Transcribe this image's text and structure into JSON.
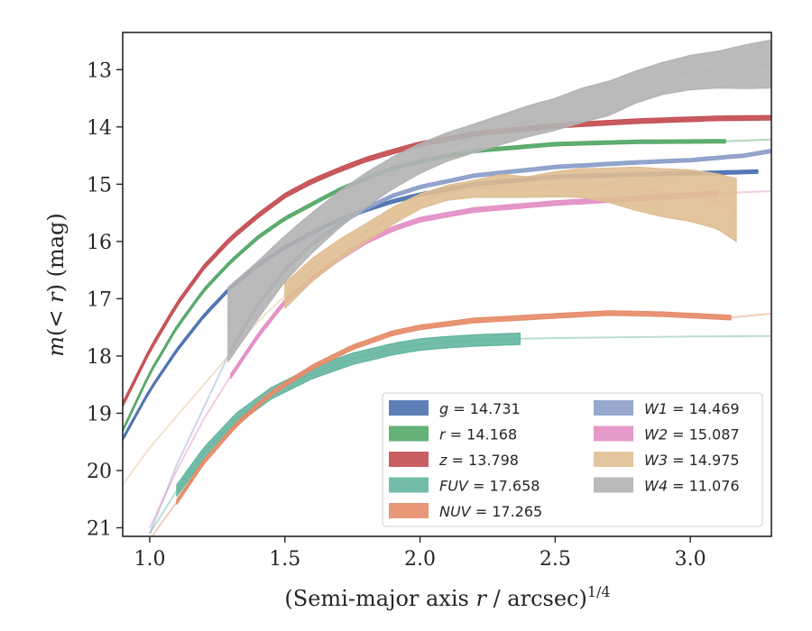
{
  "chart_data": {
    "type": "line",
    "xlabel": "(Semi-major axis r / arcsec)1/4",
    "ylabel": "m(< r) (mag)",
    "xlim": [
      0.9,
      3.3
    ],
    "ylim": [
      21.15,
      12.35
    ],
    "y_inverted": true,
    "x_ticks": [
      "1.0",
      "1.5",
      "2.0",
      "2.5",
      "3.0"
    ],
    "x_tick_values": [
      1.0,
      1.5,
      2.0,
      2.5,
      3.0
    ],
    "y_ticks": [
      "13",
      "14",
      "15",
      "16",
      "17",
      "18",
      "19",
      "20",
      "21"
    ],
    "y_tick_values": [
      13,
      14,
      15,
      16,
      17,
      18,
      19,
      20,
      21
    ],
    "legend_position": "lower-right",
    "legend_columns": 2,
    "grid": false,
    "series": [
      {
        "name": "g",
        "legend_label": "g = 14.731",
        "color": "#4c72b0",
        "x": [
          0.9,
          1.0,
          1.1,
          1.2,
          1.3,
          1.4,
          1.5,
          1.6,
          1.7,
          1.8,
          1.9,
          2.0,
          2.2,
          2.5,
          2.8,
          3.1,
          3.25
        ],
        "y": [
          19.45,
          18.6,
          17.9,
          17.3,
          16.8,
          16.42,
          16.1,
          15.85,
          15.62,
          15.45,
          15.3,
          15.18,
          15.0,
          14.87,
          14.83,
          14.8,
          14.78
        ],
        "band_halfwidth": 0.03,
        "band_x_range": [
          0.9,
          3.25
        ]
      },
      {
        "name": "r",
        "legend_label": "r = 14.168",
        "color": "#55a868",
        "x": [
          0.9,
          1.0,
          1.1,
          1.2,
          1.3,
          1.4,
          1.5,
          1.6,
          1.7,
          1.8,
          1.9,
          2.0,
          2.2,
          2.5,
          2.8,
          3.13,
          3.3
        ],
        "y": [
          19.3,
          18.3,
          17.5,
          16.85,
          16.35,
          15.93,
          15.6,
          15.35,
          15.1,
          14.9,
          14.72,
          14.6,
          14.42,
          14.3,
          14.26,
          14.25,
          14.22
        ],
        "band_halfwidth": 0.03,
        "band_x_range": [
          0.9,
          3.13
        ]
      },
      {
        "name": "z",
        "legend_label": "z = 13.798",
        "color": "#c44e52",
        "x": [
          0.9,
          1.0,
          1.1,
          1.2,
          1.3,
          1.4,
          1.5,
          1.6,
          1.7,
          1.8,
          1.9,
          2.0,
          2.2,
          2.5,
          2.8,
          3.1,
          3.3
        ],
        "y": [
          18.85,
          17.9,
          17.1,
          16.45,
          15.95,
          15.55,
          15.2,
          14.95,
          14.75,
          14.57,
          14.43,
          14.3,
          14.12,
          13.98,
          13.9,
          13.85,
          13.84
        ],
        "band_halfwidth": 0.04,
        "band_x_range": [
          0.9,
          3.3
        ]
      },
      {
        "name": "FUV",
        "legend_label": "FUV = 17.658",
        "color": "#64b5a0",
        "x": [
          1.0,
          1.1,
          1.2,
          1.32,
          1.45,
          1.6,
          1.75,
          1.9,
          2.0,
          2.1,
          2.2,
          2.37,
          2.6,
          3.0,
          3.3
        ],
        "y": [
          21.1,
          20.35,
          19.7,
          19.1,
          18.65,
          18.3,
          18.05,
          17.88,
          17.8,
          17.76,
          17.73,
          17.7,
          17.68,
          17.66,
          17.65
        ],
        "band_halfwidth": 0.1,
        "band_x_range": [
          1.1,
          2.37
        ]
      },
      {
        "name": "NUV",
        "legend_label": "NUV = 17.265",
        "color": "#e58c6a",
        "x": [
          1.0,
          1.1,
          1.2,
          1.32,
          1.45,
          1.6,
          1.75,
          1.9,
          2.0,
          2.2,
          2.5,
          2.7,
          2.9,
          3.15,
          3.3
        ],
        "y": [
          21.2,
          20.55,
          19.85,
          19.2,
          18.65,
          18.2,
          17.85,
          17.6,
          17.5,
          17.38,
          17.3,
          17.25,
          17.27,
          17.33,
          17.26
        ],
        "band_halfwidth": 0.04,
        "band_x_range": [
          1.1,
          3.15
        ]
      },
      {
        "name": "W1",
        "legend_label": "W1 = 14.469",
        "color": "#8c9fc9",
        "x": [
          1.0,
          1.1,
          1.2,
          1.3,
          1.4,
          1.5,
          1.6,
          1.7,
          1.8,
          1.9,
          2.0,
          2.2,
          2.5,
          2.8,
          3.0,
          3.2,
          3.3
        ],
        "y": [
          21.1,
          19.9,
          18.9,
          17.9,
          17.1,
          16.5,
          16.05,
          15.7,
          15.42,
          15.2,
          15.05,
          14.85,
          14.7,
          14.62,
          14.58,
          14.5,
          14.42
        ],
        "band_halfwidth": 0.03,
        "band_x_range": [
          1.3,
          3.3
        ]
      },
      {
        "name": "W2",
        "legend_label": "W2 = 15.087",
        "color": "#e28fc3",
        "x": [
          1.0,
          1.1,
          1.2,
          1.3,
          1.4,
          1.5,
          1.6,
          1.7,
          1.8,
          1.9,
          2.0,
          2.2,
          2.5,
          2.8,
          3.1,
          3.3
        ],
        "y": [
          21.0,
          20.0,
          19.1,
          18.35,
          17.65,
          17.05,
          16.65,
          16.3,
          16.0,
          15.78,
          15.62,
          15.45,
          15.33,
          15.25,
          15.16,
          15.12
        ],
        "band_halfwidth": 0.04,
        "band_x_range": [
          1.3,
          3.1
        ]
      },
      {
        "name": "W3",
        "legend_label": "W3 = 14.975",
        "color": "#dfbe92",
        "x": [
          0.9,
          1.0,
          1.1,
          1.2,
          1.3,
          1.4,
          1.5,
          1.6,
          1.7,
          1.8,
          1.9,
          2.0,
          2.1,
          2.2,
          2.3,
          2.4,
          2.5,
          2.6,
          2.7,
          2.8,
          2.9,
          3.0,
          3.1,
          3.17
        ],
        "y": [
          20.25,
          19.6,
          19.05,
          18.5,
          17.95,
          17.4,
          16.95,
          16.5,
          16.15,
          15.85,
          15.55,
          15.3,
          15.15,
          15.08,
          15.03,
          15.05,
          15.0,
          14.98,
          15.02,
          15.08,
          15.15,
          15.2,
          15.3,
          15.45
        ],
        "band_halfwidth": [
          0.3,
          0.3,
          0.3,
          0.3,
          0.3,
          0.25,
          0.22,
          0.2,
          0.18,
          0.16,
          0.15,
          0.13,
          0.13,
          0.15,
          0.2,
          0.18,
          0.22,
          0.25,
          0.3,
          0.38,
          0.42,
          0.45,
          0.48,
          0.55
        ],
        "band_x_range": [
          1.5,
          3.17
        ]
      },
      {
        "name": "W4",
        "legend_label": "W4 = 11.076",
        "color": "#b3b3b3",
        "x": [
          1.29,
          1.4,
          1.5,
          1.6,
          1.7,
          1.8,
          1.9,
          2.0,
          2.1,
          2.2,
          2.3,
          2.4,
          2.5,
          2.6,
          2.7,
          2.8,
          2.9,
          3.0,
          3.1,
          3.2,
          3.3
        ],
        "y": [
          17.45,
          16.85,
          16.3,
          15.85,
          15.45,
          15.1,
          14.8,
          14.55,
          14.35,
          14.2,
          14.05,
          13.9,
          13.78,
          13.62,
          13.5,
          13.3,
          13.15,
          13.05,
          13.0,
          12.95,
          12.9
        ],
        "band_halfwidth": [
          0.65,
          0.5,
          0.4,
          0.35,
          0.32,
          0.3,
          0.28,
          0.26,
          0.25,
          0.25,
          0.26,
          0.27,
          0.28,
          0.3,
          0.3,
          0.28,
          0.28,
          0.3,
          0.32,
          0.38,
          0.42
        ],
        "band_x_range": [
          1.29,
          3.3
        ]
      }
    ]
  }
}
